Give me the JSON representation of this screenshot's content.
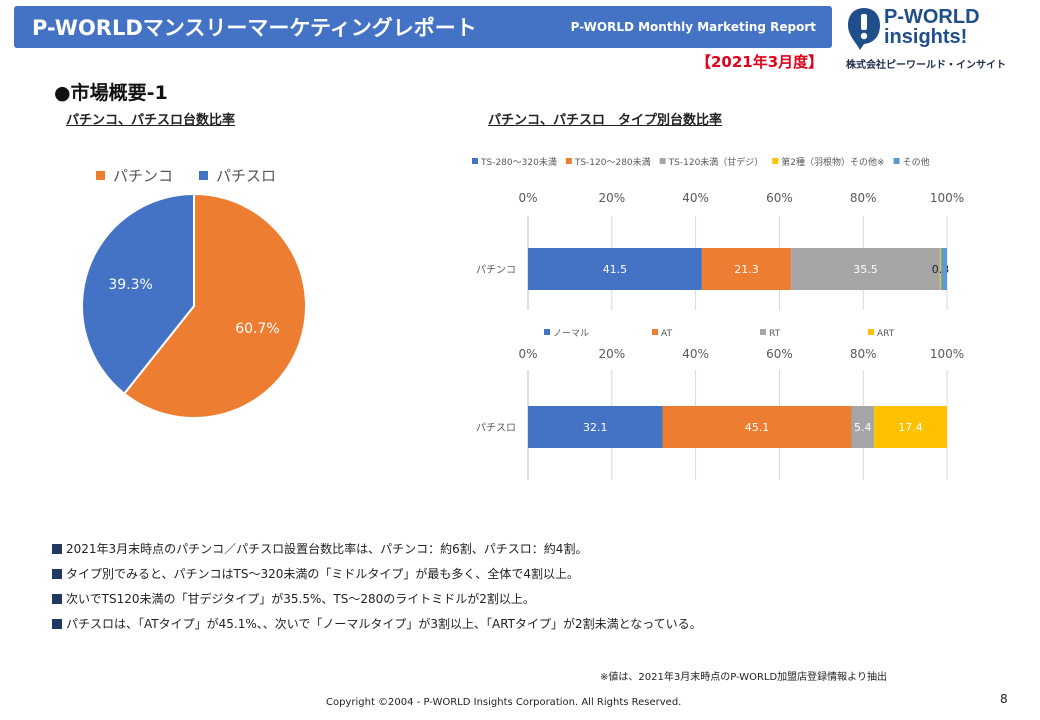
{
  "header": {
    "title": "P-WORLDマンスリーマーケティングレポート",
    "subtitle": "P-WORLD Monthly Marketing Report"
  },
  "logo": {
    "line1": "P-WORLD",
    "line2": "insights!",
    "company": "株式会社ピーワールド・インサイト",
    "icon": "exclamation-badge-icon"
  },
  "period": "【2021年3月度】",
  "section_title": "●市場概要-1",
  "colors": {
    "blue": "#4472c4",
    "orange": "#ed7d31",
    "gray": "#a5a5a5",
    "yellow": "#ffc000",
    "navy": "#1f3864"
  },
  "chart_data": [
    {
      "type": "pie",
      "title": "パチンコ、パチスロ台数比率",
      "legend_position": "top",
      "slices": [
        {
          "name": "パチンコ",
          "value": 60.7,
          "label": "60.7%",
          "color": "#ed7d31"
        },
        {
          "name": "パチスロ",
          "value": 39.3,
          "label": "39.3%",
          "color": "#4472c4"
        }
      ]
    },
    {
      "type": "bar",
      "orientation": "horizontal-stacked-100",
      "title": "パチンコ、パチスロ　タイプ別台数比率",
      "axis_ticks": [
        "0%",
        "20%",
        "40%",
        "60%",
        "80%",
        "100%"
      ],
      "xlim": [
        0,
        100
      ],
      "grid": true,
      "legend_position": "top",
      "category": "パチンコ",
      "series": [
        {
          "name": "TS-280～320未満",
          "value": 41.5,
          "label": "41.5",
          "color": "#4472c4"
        },
        {
          "name": "TS-120～280未満",
          "value": 21.3,
          "label": "21.3",
          "color": "#ed7d31"
        },
        {
          "name": "TS-120未満（甘デジ）",
          "value": 35.5,
          "label": "35.5",
          "color": "#a5a5a5"
        },
        {
          "name": "第2種（羽根物）その他※",
          "value": 0.3,
          "label": "0.3",
          "color": "#ffc000"
        },
        {
          "name": "その他",
          "value": 1.4,
          "label": "",
          "color": "#5b9bd5"
        }
      ]
    },
    {
      "type": "bar",
      "orientation": "horizontal-stacked-100",
      "axis_ticks": [
        "0%",
        "20%",
        "40%",
        "60%",
        "80%",
        "100%"
      ],
      "xlim": [
        0,
        100
      ],
      "grid": true,
      "legend_position": "top",
      "category": "パチスロ",
      "series": [
        {
          "name": "ノーマル",
          "value": 32.1,
          "label": "32.1",
          "color": "#4472c4"
        },
        {
          "name": "AT",
          "value": 45.1,
          "label": "45.1",
          "color": "#ed7d31"
        },
        {
          "name": "RT",
          "value": 5.4,
          "label": "5.4",
          "color": "#a5a5a5"
        },
        {
          "name": "ART",
          "value": 17.4,
          "label": "17.4",
          "color": "#ffc000"
        }
      ]
    }
  ],
  "bullets": [
    "2021年3月末時点のパチンコ／パチスロ設置台数比率は、パチンコ：約6割、パチスロ：約4割。",
    "タイプ別でみると、パチンコはTS～320未満の「ミドルタイプ」が最も多く、全体で4割以上。",
    "次いでTS120未満の「甘デジタイプ」が35.5%、TS～280のライトミドルが2割以上。",
    "パチスロは、「ATタイプ」が45.1%、、次いで「ノーマルタイプ」が3割以上、「ARTタイプ」が2割未満となっている。"
  ],
  "note": "※値は、2021年3月末時点のP-WORLD加盟店登録情報より抽出",
  "footer": "Copyright ©2004 -  P-WORLD Insights Corporation. All Rights Reserved.",
  "page_number": "8"
}
